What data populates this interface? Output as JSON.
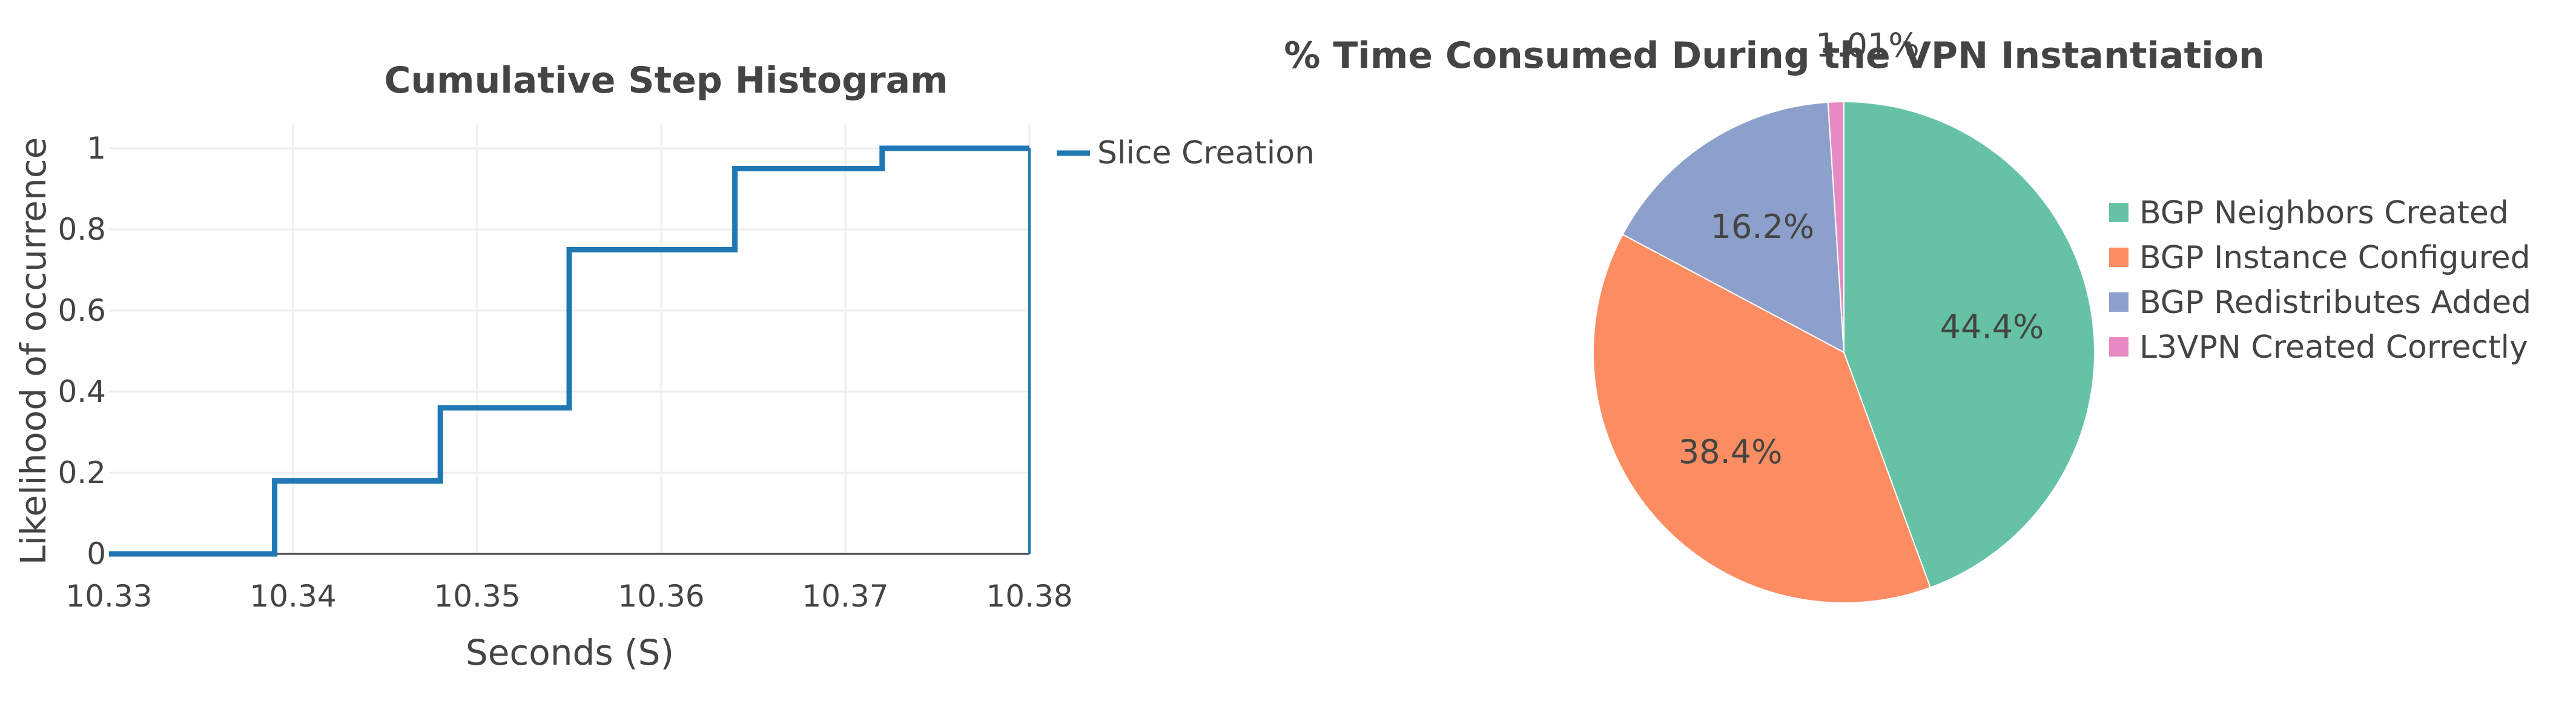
{
  "chart_data": [
    {
      "type": "line",
      "title": "Cumulative Step Histogram",
      "xlabel": "Seconds (S)",
      "ylabel": "Likelihood of occurrence",
      "xlim": [
        10.33,
        10.38
      ],
      "ylim": [
        0,
        1
      ],
      "x_ticks": [
        "10.33",
        "10.34",
        "10.35",
        "10.36",
        "10.37",
        "10.38"
      ],
      "y_ticks": [
        "0",
        "0.2",
        "0.4",
        "0.6",
        "0.8",
        "1"
      ],
      "grid": true,
      "legend": "top-right",
      "series": [
        {
          "name": "Slice Creation",
          "color": "#1f77b4",
          "x": [
            10.33,
            10.339,
            10.339,
            10.348,
            10.348,
            10.355,
            10.355,
            10.364,
            10.364,
            10.372,
            10.372,
            10.38,
            10.38
          ],
          "y": [
            0,
            0,
            0.18,
            0.18,
            0.36,
            0.36,
            0.75,
            0.75,
            0.95,
            0.95,
            1.0,
            1.0,
            0
          ]
        }
      ]
    },
    {
      "type": "pie",
      "title": "% Time Consumed During the VPN Instantiation",
      "legend": "right",
      "slices": [
        {
          "label": "BGP Neighbors Created",
          "value": 44.4,
          "text": "44.4%",
          "color": "#66c2a5"
        },
        {
          "label": "BGP Instance Configured",
          "value": 38.4,
          "text": "38.4%",
          "color": "#fc8d62"
        },
        {
          "label": "BGP Redistributes Added",
          "value": 16.2,
          "text": "16.2%",
          "color": "#8da0cb"
        },
        {
          "label": "L3VPN Created Correctly",
          "value": 1.01,
          "text": "1.01%",
          "color": "#e78ac3"
        }
      ]
    }
  ]
}
